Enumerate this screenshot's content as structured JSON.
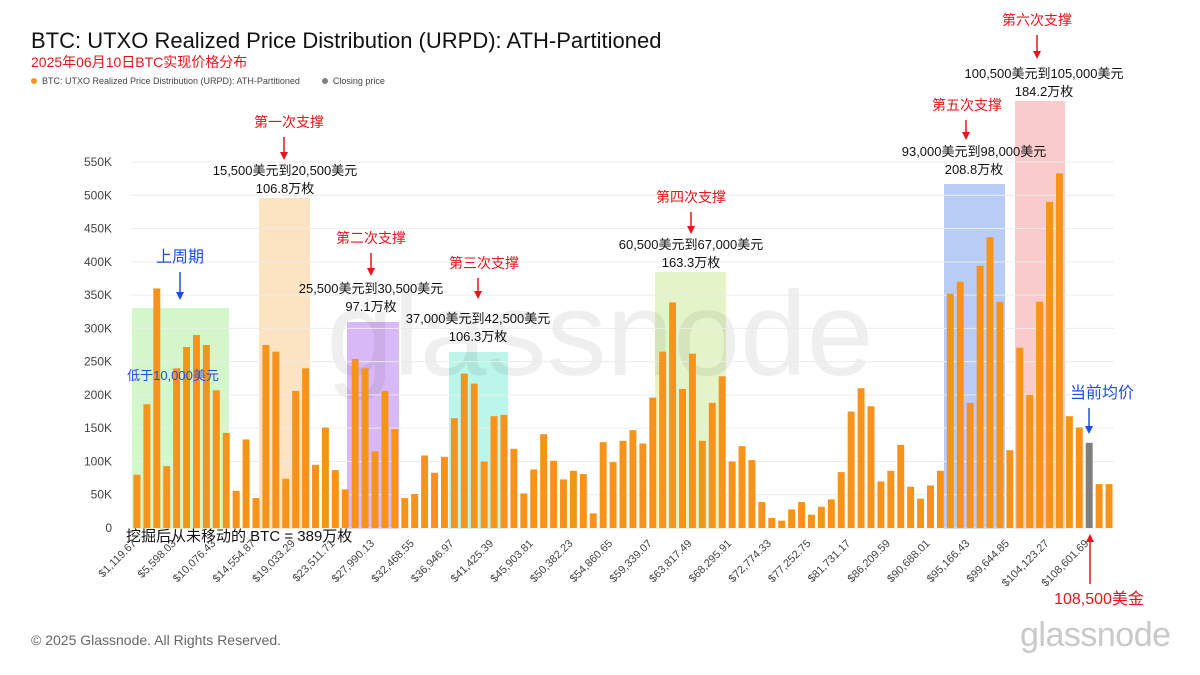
{
  "header": {
    "title": "BTC: UTXO Realized Price Distribution (URPD): ATH-Partitioned",
    "subtitle": "2025年06月10日BTC实现价格分布"
  },
  "legend": {
    "series_label": "BTC: UTXO Realized Price Distribution (URPD): ATH-Partitioned",
    "closing_label": "Closing price"
  },
  "footer": {
    "copyright": "© 2025 Glassnode. All Rights Reserved.",
    "brand": "glassnode"
  },
  "colors": {
    "bar": "#f7931a",
    "closing": "#7f7f7f",
    "red_text": "#e8141c",
    "blue_text": "#1f4fe0",
    "axis_text": "#444444"
  },
  "chart_data": {
    "type": "bar",
    "title": "BTC: UTXO Realized Price Distribution (URPD): ATH-Partitioned",
    "xlabel": "",
    "ylabel": "",
    "ylim": [
      0,
      550000
    ],
    "yticks": [
      0,
      50000,
      100000,
      150000,
      200000,
      250000,
      300000,
      350000,
      400000,
      450000,
      500000,
      550000
    ],
    "ytick_labels": [
      "0",
      "50K",
      "100K",
      "150K",
      "200K",
      "250K",
      "300K",
      "350K",
      "400K",
      "450K",
      "500K",
      "550K"
    ],
    "xtick_labels": [
      {
        "index": 0,
        "label": "$1,119.67"
      },
      {
        "index": 4,
        "label": "$5,598.03"
      },
      {
        "index": 8,
        "label": "$10,076.43"
      },
      {
        "index": 12,
        "label": "$14,554.87"
      },
      {
        "index": 16,
        "label": "$19,033.29"
      },
      {
        "index": 20,
        "label": "$23,511.71"
      },
      {
        "index": 24,
        "label": "$27,990.13"
      },
      {
        "index": 28,
        "label": "$32,468.55"
      },
      {
        "index": 32,
        "label": "$36,946.97"
      },
      {
        "index": 36,
        "label": "$41,425.39"
      },
      {
        "index": 40,
        "label": "$45,903.81"
      },
      {
        "index": 44,
        "label": "$50,382.23"
      },
      {
        "index": 48,
        "label": "$54,860.65"
      },
      {
        "index": 52,
        "label": "$59,339.07"
      },
      {
        "index": 56,
        "label": "$63,817.49"
      },
      {
        "index": 60,
        "label": "$68,295.91"
      },
      {
        "index": 64,
        "label": "$72,774.33"
      },
      {
        "index": 68,
        "label": "$77,252.75"
      },
      {
        "index": 72,
        "label": "$81,731.17"
      },
      {
        "index": 76,
        "label": "$86,209.59"
      },
      {
        "index": 80,
        "label": "$90,688.01"
      },
      {
        "index": 84,
        "label": "$95,166.43"
      },
      {
        "index": 88,
        "label": "$99,644.85"
      },
      {
        "index": 92,
        "label": "$104,123.27"
      },
      {
        "index": 96,
        "label": "$108,601.69"
      }
    ],
    "values": [
      80000,
      186000,
      360000,
      93000,
      240000,
      272000,
      290000,
      275000,
      207000,
      143000,
      56000,
      133000,
      45000,
      275000,
      265000,
      74000,
      206000,
      240000,
      95000,
      151000,
      87000,
      58000,
      254000,
      240000,
      115000,
      206000,
      149000,
      45000,
      51000,
      109000,
      83000,
      107000,
      165000,
      232000,
      217000,
      100000,
      168000,
      170000,
      119000,
      52000,
      88000,
      141000,
      101000,
      73000,
      86000,
      81000,
      22000,
      129000,
      99000,
      131000,
      147000,
      127000,
      196000,
      265000,
      339000,
      209000,
      262000,
      131000,
      188000,
      228000,
      100000,
      123000,
      102000,
      39000,
      15000,
      11000,
      28000,
      39000,
      20000,
      32000,
      43000,
      84000,
      175000,
      210000,
      183000,
      70000,
      86000,
      125000,
      62000,
      44000,
      64000,
      86000,
      352000,
      370000,
      188000,
      394000,
      437000,
      340000,
      117000,
      271000,
      200000,
      340000,
      490000,
      533000,
      168000,
      151000,
      128000,
      66000,
      66000
    ],
    "closing_price_index": 96,
    "bar_count": 99
  },
  "annotations": {
    "support1": {
      "title": "第一次支撑",
      "range": "15,500美元到20,500美元",
      "amount": "106.8万枚"
    },
    "support2": {
      "title": "第二次支撑",
      "range": "25,500美元到30,500美元",
      "amount": "97.1万枚"
    },
    "support3": {
      "title": "第三次支撑",
      "range": "37,000美元到42,500美元",
      "amount": "106.3万枚"
    },
    "support4": {
      "title": "第四次支撑",
      "range": "60,500美元到67,000美元",
      "amount": "163.3万枚"
    },
    "support5": {
      "title": "第五次支撑",
      "range": "93,000美元到98,000美元",
      "amount": "208.8万枚"
    },
    "support6": {
      "title": "第六次支撑",
      "range": "100,500美元到105,000美元",
      "amount": "184.2万枚"
    },
    "prev_cycle": {
      "title": "上周期",
      "note": "低于10,000美元"
    },
    "current_avg": {
      "title": "当前均价",
      "price": "108,500美金"
    },
    "mined_unmoved": "挖掘后从未移动的 BTC = 389万枚"
  }
}
